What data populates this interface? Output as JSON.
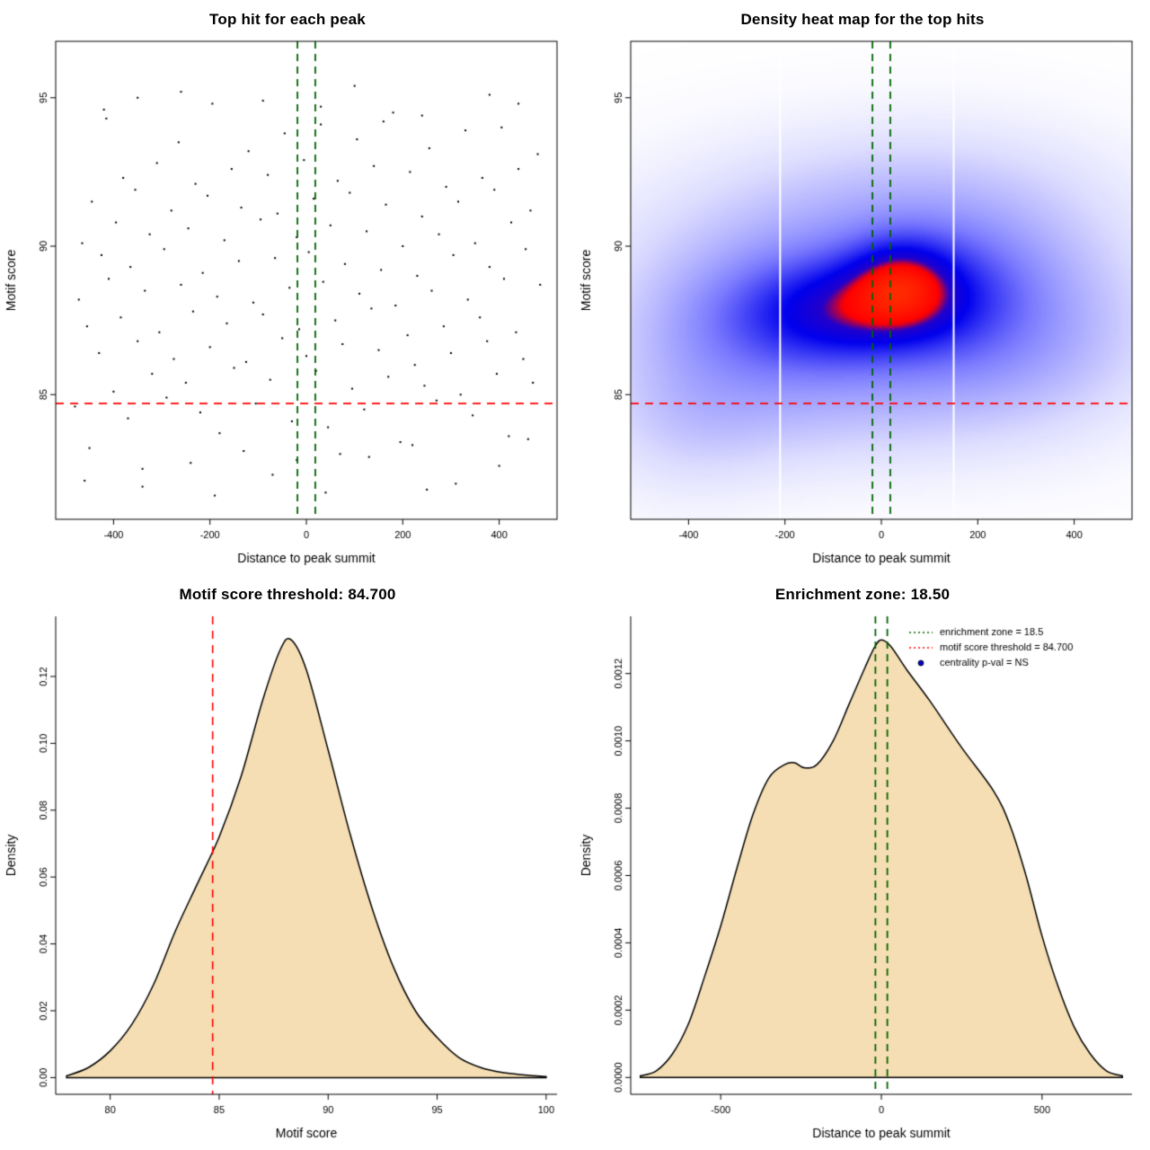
{
  "colors": {
    "threshold_red": "#ff0000",
    "zone_green": "#006400",
    "fill_wheat": "#f5deb3",
    "curve_black": "#000000",
    "point_black": "#000000",
    "heat_white_line": "#ffffff",
    "legend_point_blue": "#0000cc"
  },
  "chart_data": [
    {
      "type": "scatter",
      "title": "Top hit for each peak",
      "xlabel": "Distance to peak summit",
      "ylabel": "Motif score",
      "xlim": [
        -520,
        520
      ],
      "ylim": [
        80.8,
        96.9
      ],
      "xticks": [
        -400,
        -200,
        0,
        200,
        400
      ],
      "yticks": [
        85,
        90,
        95
      ],
      "hline_red": 84.7,
      "vlines_green": [
        -18.5,
        18.5
      ],
      "points": [
        [
          -480,
          84.6
        ],
        [
          -472,
          88.2
        ],
        [
          -465,
          90.1
        ],
        [
          -455,
          87.3
        ],
        [
          -450,
          83.2
        ],
        [
          -445,
          91.5
        ],
        [
          -430,
          86.4
        ],
        [
          -425,
          89.7
        ],
        [
          -415,
          94.3
        ],
        [
          -410,
          88.9
        ],
        [
          -400,
          85.1
        ],
        [
          -395,
          90.8
        ],
        [
          -385,
          87.6
        ],
        [
          -380,
          92.3
        ],
        [
          -370,
          84.2
        ],
        [
          -365,
          89.3
        ],
        [
          -355,
          91.9
        ],
        [
          -350,
          86.8
        ],
        [
          -340,
          82.5
        ],
        [
          -335,
          88.5
        ],
        [
          -325,
          90.4
        ],
        [
          -320,
          85.7
        ],
        [
          -310,
          92.8
        ],
        [
          -305,
          87.1
        ],
        [
          -295,
          89.9
        ],
        [
          -290,
          84.9
        ],
        [
          -280,
          91.2
        ],
        [
          -275,
          86.2
        ],
        [
          -265,
          93.5
        ],
        [
          -260,
          88.7
        ],
        [
          -250,
          85.4
        ],
        [
          -245,
          90.6
        ],
        [
          -235,
          87.8
        ],
        [
          -230,
          92.1
        ],
        [
          -220,
          84.4
        ],
        [
          -215,
          89.1
        ],
        [
          -205,
          91.7
        ],
        [
          -200,
          86.6
        ],
        [
          -195,
          94.8
        ],
        [
          -185,
          88.3
        ],
        [
          -180,
          83.7
        ],
        [
          -170,
          90.2
        ],
        [
          -165,
          87.4
        ],
        [
          -155,
          92.6
        ],
        [
          -150,
          85.9
        ],
        [
          -140,
          89.5
        ],
        [
          -135,
          91.3
        ],
        [
          -125,
          86.1
        ],
        [
          -120,
          93.2
        ],
        [
          -110,
          88.1
        ],
        [
          -105,
          84.7
        ],
        [
          -95,
          90.9
        ],
        [
          -90,
          87.7
        ],
        [
          -80,
          92.4
        ],
        [
          -75,
          85.5
        ],
        [
          -65,
          89.6
        ],
        [
          -60,
          91.1
        ],
        [
          -50,
          86.9
        ],
        [
          -45,
          93.8
        ],
        [
          -35,
          88.6
        ],
        [
          -30,
          84.1
        ],
        [
          -20,
          90.3
        ],
        [
          -15,
          87.2
        ],
        [
          -5,
          92.9
        ],
        [
          0,
          86.3
        ],
        [
          5,
          89.8
        ],
        [
          15,
          91.6
        ],
        [
          20,
          85.8
        ],
        [
          30,
          94.1
        ],
        [
          35,
          88.8
        ],
        [
          45,
          83.9
        ],
        [
          50,
          90.7
        ],
        [
          60,
          87.5
        ],
        [
          65,
          92.2
        ],
        [
          75,
          86.7
        ],
        [
          80,
          89.4
        ],
        [
          90,
          91.8
        ],
        [
          95,
          85.2
        ],
        [
          105,
          93.6
        ],
        [
          110,
          88.4
        ],
        [
          120,
          84.5
        ],
        [
          125,
          90.5
        ],
        [
          135,
          87.9
        ],
        [
          140,
          92.7
        ],
        [
          150,
          86.5
        ],
        [
          155,
          89.2
        ],
        [
          165,
          91.4
        ],
        [
          170,
          85.6
        ],
        [
          180,
          94.5
        ],
        [
          185,
          88.0
        ],
        [
          195,
          83.4
        ],
        [
          200,
          90.0
        ],
        [
          210,
          87.0
        ],
        [
          215,
          92.5
        ],
        [
          225,
          86.0
        ],
        [
          230,
          89.0
        ],
        [
          240,
          91.0
        ],
        [
          245,
          85.3
        ],
        [
          255,
          93.3
        ],
        [
          260,
          88.5
        ],
        [
          270,
          84.8
        ],
        [
          275,
          90.4
        ],
        [
          285,
          87.3
        ],
        [
          290,
          92.0
        ],
        [
          300,
          86.4
        ],
        [
          305,
          89.7
        ],
        [
          315,
          91.5
        ],
        [
          320,
          85.0
        ],
        [
          330,
          93.9
        ],
        [
          335,
          88.2
        ],
        [
          345,
          84.3
        ],
        [
          350,
          90.1
        ],
        [
          360,
          87.6
        ],
        [
          365,
          92.3
        ],
        [
          375,
          86.8
        ],
        [
          380,
          89.3
        ],
        [
          390,
          91.9
        ],
        [
          395,
          85.7
        ],
        [
          405,
          94.0
        ],
        [
          410,
          88.9
        ],
        [
          420,
          83.6
        ],
        [
          425,
          90.8
        ],
        [
          435,
          87.1
        ],
        [
          440,
          92.6
        ],
        [
          450,
          86.2
        ],
        [
          455,
          89.9
        ],
        [
          465,
          91.2
        ],
        [
          470,
          85.4
        ],
        [
          480,
          93.1
        ],
        [
          485,
          88.7
        ],
        [
          -460,
          82.1
        ],
        [
          -340,
          81.9
        ],
        [
          -240,
          82.7
        ],
        [
          -130,
          83.1
        ],
        [
          -70,
          82.3
        ],
        [
          40,
          81.7
        ],
        [
          130,
          82.9
        ],
        [
          220,
          83.3
        ],
        [
          310,
          82.0
        ],
        [
          400,
          82.6
        ],
        [
          460,
          83.5
        ],
        [
          -190,
          81.6
        ],
        [
          70,
          83.0
        ],
        [
          250,
          81.8
        ],
        [
          -20,
          82.8
        ],
        [
          -420,
          94.6
        ],
        [
          -260,
          95.2
        ],
        [
          -90,
          94.9
        ],
        [
          100,
          95.4
        ],
        [
          240,
          94.4
        ],
        [
          380,
          95.1
        ],
        [
          30,
          94.7
        ],
        [
          -350,
          95.0
        ],
        [
          160,
          94.2
        ],
        [
          440,
          94.8
        ]
      ]
    },
    {
      "type": "heatmap",
      "title": "Density heat map for the top hits",
      "xlabel": "Distance to peak summit",
      "ylabel": "Motif score",
      "xlim": [
        -520,
        520
      ],
      "ylim": [
        80.8,
        96.9
      ],
      "xticks": [
        -400,
        -200,
        0,
        200,
        400
      ],
      "yticks": [
        85,
        90,
        95
      ],
      "hline_red": 84.7,
      "vlines_green": [
        -18.5,
        18.5
      ],
      "white_vlines": [
        -210,
        150
      ],
      "density_blobs": [
        {
          "x": 40,
          "y": 88.8,
          "sx": 70,
          "sy": 1.0,
          "w": 1.0
        },
        {
          "x": -30,
          "y": 88.0,
          "sx": 120,
          "sy": 1.1,
          "w": 0.85
        },
        {
          "x": -160,
          "y": 87.6,
          "sx": 140,
          "sy": 1.3,
          "w": 0.72
        },
        {
          "x": 140,
          "y": 88.4,
          "sx": 110,
          "sy": 1.4,
          "w": 0.62
        },
        {
          "x": 0,
          "y": 88.3,
          "sx": 330,
          "sy": 2.6,
          "w": 0.55
        },
        {
          "x": -80,
          "y": 90.5,
          "sx": 300,
          "sy": 2.2,
          "w": 0.35
        },
        {
          "x": 60,
          "y": 86.0,
          "sx": 320,
          "sy": 2.0,
          "w": 0.38
        },
        {
          "x": -380,
          "y": 86.5,
          "sx": 160,
          "sy": 2.4,
          "w": 0.35
        },
        {
          "x": 320,
          "y": 87.5,
          "sx": 180,
          "sy": 2.6,
          "w": 0.35
        },
        {
          "x": -420,
          "y": 83.5,
          "sx": 140,
          "sy": 1.8,
          "w": 0.18
        },
        {
          "x": 150,
          "y": 92.0,
          "sx": 250,
          "sy": 1.8,
          "w": 0.22
        },
        {
          "x": -150,
          "y": 84.0,
          "sx": 250,
          "sy": 1.5,
          "w": 0.2
        }
      ],
      "colormap": [
        [
          0,
          "#ffffff"
        ],
        [
          0.12,
          "#dcdcff"
        ],
        [
          0.35,
          "#7b7bff"
        ],
        [
          0.6,
          "#0000ee"
        ],
        [
          0.72,
          "#2200cc"
        ],
        [
          0.8,
          "#ff0000"
        ],
        [
          1,
          "#ff2a00"
        ]
      ]
    },
    {
      "type": "density",
      "title": "Motif score threshold: 84.700",
      "xlabel": "Motif score",
      "ylabel": "Density",
      "xlim": [
        77.5,
        100.5
      ],
      "ylim": [
        -0.005,
        0.138
      ],
      "xticks": [
        80,
        85,
        90,
        95,
        100
      ],
      "yticks": [
        0.0,
        0.02,
        0.04,
        0.06,
        0.08,
        0.1,
        0.12
      ],
      "ytick_decimals": 2,
      "vline_red": 84.7,
      "curve": [
        [
          78,
          0.0005
        ],
        [
          79,
          0.003
        ],
        [
          80,
          0.008
        ],
        [
          81,
          0.016
        ],
        [
          82,
          0.028
        ],
        [
          83,
          0.044
        ],
        [
          84,
          0.058
        ],
        [
          85,
          0.072
        ],
        [
          86,
          0.09
        ],
        [
          87,
          0.113
        ],
        [
          87.8,
          0.128
        ],
        [
          88.3,
          0.131
        ],
        [
          89,
          0.122
        ],
        [
          90,
          0.098
        ],
        [
          91,
          0.073
        ],
        [
          92,
          0.051
        ],
        [
          93,
          0.033
        ],
        [
          94,
          0.02
        ],
        [
          95,
          0.012
        ],
        [
          96,
          0.006
        ],
        [
          97,
          0.003
        ],
        [
          98,
          0.0015
        ],
        [
          99,
          0.0008
        ],
        [
          100,
          0.0003
        ]
      ]
    },
    {
      "type": "density",
      "title": "Enrichment zone: 18.50",
      "xlabel": "Distance to peak summit",
      "ylabel": "Density",
      "xlim": [
        -780,
        780
      ],
      "ylim": [
        -5e-05,
        0.00137
      ],
      "xticks": [
        -500,
        0,
        500
      ],
      "yticks": [
        0.0,
        0.0002,
        0.0004,
        0.0006,
        0.0008,
        0.001,
        0.0012
      ],
      "ytick_decimals": 4,
      "vlines_green": [
        -18.5,
        18.5
      ],
      "curve": [
        [
          -750,
          5e-06
        ],
        [
          -700,
          2e-05
        ],
        [
          -650,
          7e-05
        ],
        [
          -600,
          0.00016
        ],
        [
          -550,
          0.0003
        ],
        [
          -500,
          0.00045
        ],
        [
          -450,
          0.00062
        ],
        [
          -400,
          0.00078
        ],
        [
          -350,
          0.00089
        ],
        [
          -300,
          0.00093
        ],
        [
          -270,
          0.000935
        ],
        [
          -240,
          0.00092
        ],
        [
          -200,
          0.00093
        ],
        [
          -150,
          0.001
        ],
        [
          -100,
          0.00111
        ],
        [
          -50,
          0.00122
        ],
        [
          -20,
          0.00128
        ],
        [
          0,
          0.0013
        ],
        [
          30,
          0.00128
        ],
        [
          80,
          0.00121
        ],
        [
          150,
          0.00112
        ],
        [
          250,
          0.00098
        ],
        [
          350,
          0.00085
        ],
        [
          400,
          0.00075
        ],
        [
          450,
          0.0006
        ],
        [
          500,
          0.00042
        ],
        [
          550,
          0.00027
        ],
        [
          600,
          0.00015
        ],
        [
          650,
          7e-05
        ],
        [
          700,
          2e-05
        ],
        [
          750,
          5e-06
        ]
      ],
      "legend": [
        {
          "marker": "dotted-line",
          "color": "#006400",
          "label": "enrichment zone = 18.5"
        },
        {
          "marker": "dotted-line",
          "color": "#ff0000",
          "label": "motif score threshold = 84.700"
        },
        {
          "marker": "point",
          "color": "#0000cc",
          "label": "centrality p-val = NS"
        }
      ]
    }
  ]
}
